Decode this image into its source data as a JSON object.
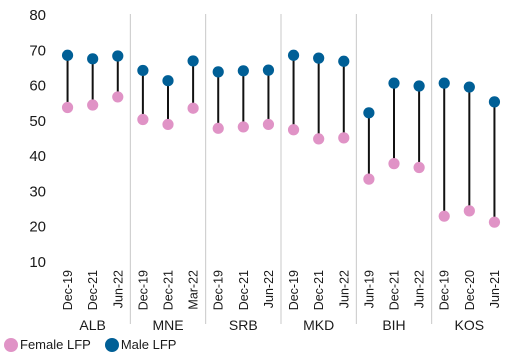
{
  "chart_data": {
    "type": "scatter",
    "subtype": "dumbbell",
    "title": "",
    "xlabel": "",
    "ylabel": "",
    "ylim": [
      10,
      80
    ],
    "yticks": [
      10,
      20,
      30,
      40,
      50,
      60,
      70,
      80
    ],
    "grid": false,
    "legend_position": "bottom-left",
    "groups": [
      {
        "name": "ALB",
        "categories": [
          "Dec-19",
          "Dec-21",
          "Jun-22"
        ]
      },
      {
        "name": "MNE",
        "categories": [
          "Dec-19",
          "Dec-21",
          "Mar-22"
        ]
      },
      {
        "name": "SRB",
        "categories": [
          "Dec-19",
          "Dec-21",
          "Jun-22"
        ]
      },
      {
        "name": "MKD",
        "categories": [
          "Dec-19",
          "Dec-21",
          "Jun-22"
        ]
      },
      {
        "name": "BIH",
        "categories": [
          "Jun-19",
          "Dec-21",
          "Jun-22"
        ]
      },
      {
        "name": "KOS",
        "categories": [
          "Dec-19",
          "Dec-20",
          "Jun-21"
        ]
      }
    ],
    "series": [
      {
        "name": "Female LFP",
        "color": "#e093c6",
        "values": [
          53.5,
          54.2,
          56.5,
          50.1,
          48.7,
          53.3,
          47.6,
          48.0,
          48.7,
          47.2,
          44.6,
          44.9,
          33.2,
          37.6,
          36.5,
          22.7,
          24.2,
          21.0
        ]
      },
      {
        "name": "Male LFP",
        "color": "#005f96",
        "values": [
          68.3,
          67.3,
          68.1,
          64.0,
          61.1,
          66.7,
          63.6,
          63.9,
          64.1,
          68.3,
          67.5,
          66.6,
          52.0,
          60.4,
          59.6,
          60.4,
          59.3,
          55.1
        ]
      }
    ]
  },
  "legend": {
    "female_label": "Female LFP",
    "male_label": "Male LFP"
  }
}
